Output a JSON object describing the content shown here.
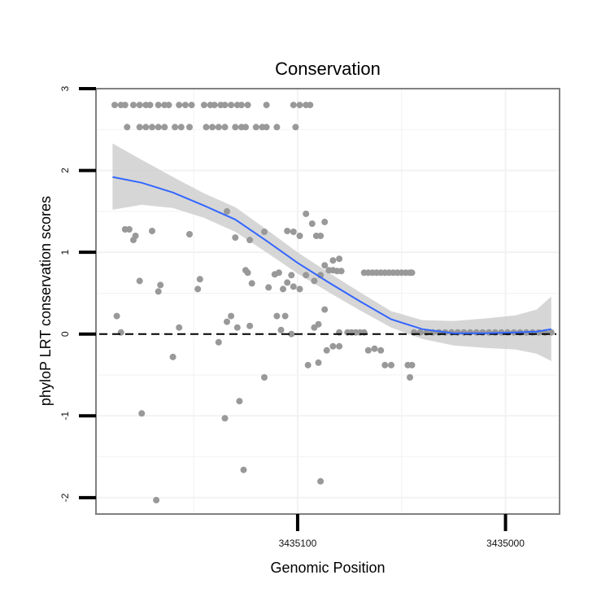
{
  "chart_data": {
    "type": "scatter",
    "title": "Conservation",
    "xlabel": "Genomic Position",
    "ylabel": "phyloP LRT conservation scores",
    "x_reversed": true,
    "xlim": [
      3435197,
      3434974
    ],
    "ylim": [
      -2.2,
      3
    ],
    "x_ticks": [
      3435100,
      3435000
    ],
    "y_ticks": [
      -2,
      -1,
      0,
      1,
      2,
      3
    ],
    "reference_line": {
      "y": 0,
      "style": "dashed"
    },
    "colors": {
      "points": "#999999",
      "smooth": "#3366ff",
      "band": "#cccccc",
      "frame": "#808080",
      "grid": "#f2f2f2"
    },
    "points": [
      [
        3435188,
        2.8
      ],
      [
        3435185,
        2.8
      ],
      [
        3435183,
        2.8
      ],
      [
        3435179,
        2.8
      ],
      [
        3435176,
        2.8
      ],
      [
        3435173,
        2.8
      ],
      [
        3435171,
        2.8
      ],
      [
        3435167,
        2.8
      ],
      [
        3435164,
        2.8
      ],
      [
        3435162,
        2.8
      ],
      [
        3435157,
        2.8
      ],
      [
        3435154,
        2.8
      ],
      [
        3435151,
        2.8
      ],
      [
        3435145,
        2.8
      ],
      [
        3435142,
        2.8
      ],
      [
        3435140,
        2.8
      ],
      [
        3435137,
        2.8
      ],
      [
        3435135,
        2.8
      ],
      [
        3435132,
        2.8
      ],
      [
        3435129,
        2.8
      ],
      [
        3435127,
        2.8
      ],
      [
        3435124,
        2.8
      ],
      [
        3435115,
        2.8
      ],
      [
        3435102,
        2.8
      ],
      [
        3435099,
        2.8
      ],
      [
        3435096,
        2.8
      ],
      [
        3435094,
        2.8
      ],
      [
        3435182,
        2.53
      ],
      [
        3435176,
        2.53
      ],
      [
        3435173,
        2.53
      ],
      [
        3435170,
        2.53
      ],
      [
        3435167,
        2.53
      ],
      [
        3435164,
        2.53
      ],
      [
        3435159,
        2.53
      ],
      [
        3435156,
        2.53
      ],
      [
        3435152,
        2.53
      ],
      [
        3435144,
        2.53
      ],
      [
        3435141,
        2.53
      ],
      [
        3435138,
        2.53
      ],
      [
        3435135,
        2.53
      ],
      [
        3435130,
        2.53
      ],
      [
        3435127,
        2.53
      ],
      [
        3435125,
        2.53
      ],
      [
        3435120,
        2.53
      ],
      [
        3435117,
        2.53
      ],
      [
        3435115,
        2.53
      ],
      [
        3435110,
        2.53
      ],
      [
        3435101,
        2.53
      ],
      [
        3435183,
        1.28
      ],
      [
        3435181,
        1.28
      ],
      [
        3435179,
        1.15
      ],
      [
        3435178,
        1.2
      ],
      [
        3435170,
        1.26
      ],
      [
        3435152,
        1.22
      ],
      [
        3435134,
        1.5
      ],
      [
        3435130,
        1.18
      ],
      [
        3435123,
        1.15
      ],
      [
        3435116,
        1.25
      ],
      [
        3435105,
        1.26
      ],
      [
        3435102,
        1.25
      ],
      [
        3435099,
        1.2
      ],
      [
        3435096,
        1.47
      ],
      [
        3435093,
        1.35
      ],
      [
        3435091,
        1.2
      ],
      [
        3435089,
        1.2
      ],
      [
        3435087,
        1.37
      ],
      [
        3435080,
        0.92
      ],
      [
        3435083,
        0.9
      ],
      [
        3435176,
        0.65
      ],
      [
        3435166,
        0.6
      ],
      [
        3435167,
        0.52
      ],
      [
        3435147,
        0.67
      ],
      [
        3435148,
        0.55
      ],
      [
        3435125,
        0.78
      ],
      [
        3435124,
        0.75
      ],
      [
        3435122,
        0.62
      ],
      [
        3435114,
        0.57
      ],
      [
        3435111,
        0.73
      ],
      [
        3435109,
        0.75
      ],
      [
        3435107,
        0.55
      ],
      [
        3435105,
        0.63
      ],
      [
        3435103,
        0.72
      ],
      [
        3435102,
        0.58
      ],
      [
        3435099,
        0.55
      ],
      [
        3435096,
        0.72
      ],
      [
        3435092,
        0.65
      ],
      [
        3435089,
        0.72
      ],
      [
        3435087,
        0.84
      ],
      [
        3435085,
        0.78
      ],
      [
        3435083,
        0.78
      ],
      [
        3435081,
        0.77
      ],
      [
        3435079,
        0.77
      ],
      [
        3435068,
        0.75
      ],
      [
        3435066,
        0.75
      ],
      [
        3435064,
        0.75
      ],
      [
        3435062,
        0.75
      ],
      [
        3435060,
        0.75
      ],
      [
        3435058,
        0.75
      ],
      [
        3435056,
        0.75
      ],
      [
        3435054,
        0.75
      ],
      [
        3435052,
        0.75
      ],
      [
        3435050,
        0.75
      ],
      [
        3435048,
        0.75
      ],
      [
        3435046,
        0.75
      ],
      [
        3435045,
        0.75
      ],
      [
        3435187,
        0.22
      ],
      [
        3435185,
        0.02
      ],
      [
        3435157,
        0.08
      ],
      [
        3435132,
        0.22
      ],
      [
        3435134,
        0.15
      ],
      [
        3435129,
        0.08
      ],
      [
        3435123,
        0.1
      ],
      [
        3435110,
        0.22
      ],
      [
        3435108,
        0.05
      ],
      [
        3435106,
        0.22
      ],
      [
        3435103,
        0
      ],
      [
        3435092,
        0.08
      ],
      [
        3435090,
        0.12
      ],
      [
        3435087,
        0.3
      ],
      [
        3435080,
        0.02
      ],
      [
        3435076,
        0.02
      ],
      [
        3435074,
        0.02
      ],
      [
        3435072,
        0.02
      ],
      [
        3435070,
        0.02
      ],
      [
        3435068,
        0.02
      ],
      [
        3435138,
        -0.1
      ],
      [
        3435160,
        -0.28
      ],
      [
        3435095,
        -0.38
      ],
      [
        3435090,
        -0.35
      ],
      [
        3435086,
        -0.2
      ],
      [
        3435083,
        -0.15
      ],
      [
        3435080,
        -0.15
      ],
      [
        3435066,
        -0.2
      ],
      [
        3435063,
        -0.18
      ],
      [
        3435060,
        -0.2
      ],
      [
        3435058,
        -0.38
      ],
      [
        3435055,
        -0.38
      ],
      [
        3435047,
        -0.38
      ],
      [
        3435045,
        -0.38
      ],
      [
        3435046,
        -0.53
      ],
      [
        3435116,
        -0.53
      ],
      [
        3435175,
        -0.97
      ],
      [
        3435135,
        -1.03
      ],
      [
        3435128,
        -0.82
      ],
      [
        3435126,
        -1.66
      ],
      [
        3435089,
        -1.8
      ],
      [
        3435168,
        -2.03
      ],
      [
        3435044,
        0.02
      ],
      [
        3435041,
        0.02
      ],
      [
        3435038,
        0.02
      ],
      [
        3435035,
        0.02
      ],
      [
        3435032,
        0.02
      ],
      [
        3435029,
        0.02
      ],
      [
        3435026,
        0.02
      ],
      [
        3435023,
        0.02
      ],
      [
        3435020,
        0.02
      ],
      [
        3435017,
        0.02
      ],
      [
        3435014,
        0.02
      ],
      [
        3435011,
        0.02
      ],
      [
        3435008,
        0.02
      ],
      [
        3435005,
        0.02
      ],
      [
        3435002,
        0.02
      ],
      [
        3434999,
        0.02
      ],
      [
        3434996,
        0.02
      ],
      [
        3434993,
        0.02
      ],
      [
        3434990,
        0.02
      ],
      [
        3434987,
        0.02
      ],
      [
        3434984,
        0.02
      ],
      [
        3434981,
        0.02
      ],
      [
        3434978,
        0.02
      ]
    ],
    "smooth_fit": {
      "x": [
        3435189,
        3435175,
        3435160,
        3435145,
        3435130,
        3435115,
        3435100,
        3435085,
        3435070,
        3435055,
        3435040,
        3435025,
        3435010,
        3434995,
        3434985,
        3434978
      ],
      "y": [
        1.92,
        1.85,
        1.73,
        1.57,
        1.4,
        1.14,
        0.87,
        0.63,
        0.4,
        0.18,
        0.06,
        0.01,
        0.01,
        0.02,
        0.03,
        0.06
      ],
      "lower": [
        1.52,
        1.58,
        1.54,
        1.42,
        1.25,
        1.0,
        0.74,
        0.51,
        0.29,
        0.08,
        -0.06,
        -0.14,
        -0.17,
        -0.19,
        -0.24,
        -0.33
      ],
      "upper": [
        2.33,
        2.13,
        1.92,
        1.72,
        1.55,
        1.28,
        1.0,
        0.75,
        0.51,
        0.28,
        0.17,
        0.16,
        0.19,
        0.23,
        0.3,
        0.46
      ]
    }
  }
}
